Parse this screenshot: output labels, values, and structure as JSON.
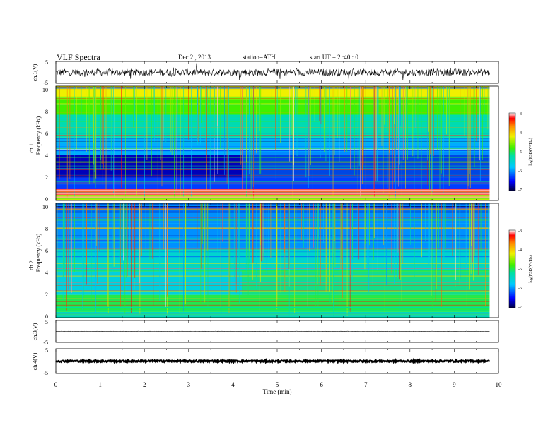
{
  "header": {
    "title": "VLF  Spectra",
    "date": "Dec.2  , 2013",
    "station": "station=ATH",
    "start": "start  UT  =   2  :40 : 0"
  },
  "chart_data": [
    {
      "type": "line",
      "name": "ch1-waveform",
      "ylabel": "ch.1(V)",
      "ylim": [
        -5,
        5
      ],
      "yticks": [
        "5",
        "-5"
      ],
      "xlim": [
        0,
        10
      ],
      "data_end": 9.8,
      "level": 0,
      "noise_amplitude": 1.6
    },
    {
      "type": "heatmap",
      "name": "ch1-spectrogram",
      "ylabel": "Frequency  (kHz)",
      "channel_label": "ch.1",
      "ylim": [
        0,
        10
      ],
      "yticks": [
        "0",
        "2",
        "4",
        "6",
        "8",
        "10"
      ],
      "xlim": [
        0,
        10
      ],
      "data_end": 9.8,
      "colorbar": {
        "label": "log(PSD(V²/Hz)",
        "ticks": [
          "-3",
          "-4",
          "-5",
          "-6",
          "-7"
        ],
        "range": [
          -7,
          -3
        ]
      },
      "background_bands_khz_logpsd": [
        [
          0,
          0.5,
          -4.4
        ],
        [
          0.5,
          1.0,
          -3.2
        ],
        [
          1.0,
          2.0,
          -6.3
        ],
        [
          2.0,
          4.0,
          -6.7
        ],
        [
          4.0,
          5.5,
          -5.9
        ],
        [
          5.5,
          7.5,
          -5.3
        ],
        [
          7.5,
          9.0,
          -4.8
        ],
        [
          9.0,
          10.0,
          -4.2
        ]
      ],
      "transition_minute": 4.2
    },
    {
      "type": "heatmap",
      "name": "ch2-spectrogram",
      "ylabel": "Frequency  (kHz)",
      "channel_label": "ch.2",
      "ylim": [
        0,
        10
      ],
      "yticks": [
        "0",
        "2",
        "4",
        "6",
        "8",
        "10"
      ],
      "xlim": [
        0,
        10
      ],
      "data_end": 9.8,
      "colorbar": {
        "label": "log(PSD(V²/Hz)",
        "ticks": [
          "-3",
          "-4",
          "-5",
          "-6",
          "-7"
        ],
        "range": [
          -7,
          -3
        ]
      },
      "background_bands_khz_logpsd": [
        [
          0,
          0.5,
          -5.4
        ],
        [
          0.5,
          2.0,
          -5.0
        ],
        [
          2.0,
          4.0,
          -5.6
        ],
        [
          4.0,
          6.0,
          -5.5
        ],
        [
          6.0,
          10.0,
          -6.0
        ]
      ],
      "transition_minute": 4.2
    },
    {
      "type": "line",
      "name": "ch3-waveform",
      "ylabel": "ch.3(V)",
      "ylim": [
        -5,
        5
      ],
      "yticks": [
        "5",
        "-5"
      ],
      "xlim": [
        0,
        10
      ],
      "data_end": 9.8,
      "level": 0,
      "noise_amplitude": 0.1
    },
    {
      "type": "line",
      "name": "ch4-waveform",
      "ylabel": "ch.4(V)",
      "ylim": [
        -5,
        5
      ],
      "yticks": [
        "5",
        "-5"
      ],
      "xlim": [
        0,
        10
      ],
      "data_end": 9.8,
      "level": 0,
      "noise_amplitude": 0.3
    }
  ],
  "xaxis": {
    "label": "Time  (min)",
    "ticks": [
      "0",
      "1",
      "2",
      "3",
      "4",
      "5",
      "6",
      "7",
      "8",
      "9",
      "10"
    ]
  }
}
